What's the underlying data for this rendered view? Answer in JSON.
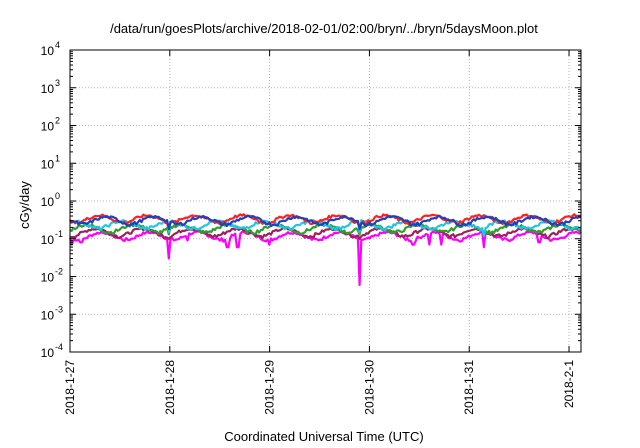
{
  "chart_data": {
    "type": "line",
    "title": "/data/run/goesPlots/archive/2018-02-01/02:00/bryn/../bryn/5daysMoon.plot",
    "xlabel": "Coordinated Universal Time (UTC)",
    "ylabel": "cGy/day",
    "yscale": "log",
    "ylim": [
      0.0001,
      10000
    ],
    "xlim_days": [
      0,
      5.12
    ],
    "y_ticks": [
      {
        "value": 0.0001,
        "base": "10",
        "exp": "-4"
      },
      {
        "value": 0.001,
        "base": "10",
        "exp": "-3"
      },
      {
        "value": 0.01,
        "base": "10",
        "exp": "-2"
      },
      {
        "value": 0.1,
        "base": "10",
        "exp": "-1"
      },
      {
        "value": 1,
        "base": "10",
        "exp": "0"
      },
      {
        "value": 10,
        "base": "10",
        "exp": "1"
      },
      {
        "value": 100,
        "base": "10",
        "exp": "2"
      },
      {
        "value": 1000,
        "base": "10",
        "exp": "3"
      },
      {
        "value": 10000,
        "base": "10",
        "exp": "4"
      }
    ],
    "x_ticks": [
      {
        "day": 0,
        "label": "2018-1-27"
      },
      {
        "day": 1,
        "label": "2018-1-28"
      },
      {
        "day": 2,
        "label": "2018-1-29"
      },
      {
        "day": 3,
        "label": "2018-1-30"
      },
      {
        "day": 4,
        "label": "2018-1-31"
      },
      {
        "day": 5,
        "label": "2018-2-1"
      }
    ],
    "grid": true,
    "series": [
      {
        "color": "#ff00ff",
        "base": 0.12,
        "dips": [
          [
            0.02,
            0.07
          ],
          [
            0.07,
            0.09
          ],
          [
            0.11,
            0.08
          ],
          [
            0.99,
            0.03
          ],
          [
            1.18,
            0.09
          ],
          [
            1.58,
            0.06
          ],
          [
            1.68,
            0.06
          ],
          [
            2.0,
            0.07
          ],
          [
            2.9,
            0.006
          ],
          [
            3.44,
            0.07
          ],
          [
            3.6,
            0.07
          ],
          [
            3.72,
            0.07
          ],
          [
            4.15,
            0.06
          ],
          [
            4.7,
            0.08
          ]
        ]
      },
      {
        "color": "#a0205a",
        "base": 0.15,
        "dips": [
          [
            0.99,
            0.1
          ],
          [
            2.9,
            0.1
          ]
        ]
      },
      {
        "color": "#2ca02c",
        "base": 0.19,
        "dips": [
          [
            0.99,
            0.13
          ],
          [
            2.9,
            0.13
          ]
        ]
      },
      {
        "color": "#1ec8e0",
        "base": 0.24,
        "dips": [
          [
            0.99,
            0.15
          ],
          [
            2.9,
            0.15
          ],
          [
            4.15,
            0.12
          ]
        ]
      },
      {
        "color": "#ff2020",
        "base": 0.34,
        "dips": [
          [
            0.99,
            0.2
          ],
          [
            2.9,
            0.2
          ]
        ]
      },
      {
        "color": "#2040c0",
        "base": 0.31,
        "dips": [
          [
            0.99,
            0.18
          ],
          [
            2.9,
            0.18
          ]
        ]
      }
    ]
  }
}
